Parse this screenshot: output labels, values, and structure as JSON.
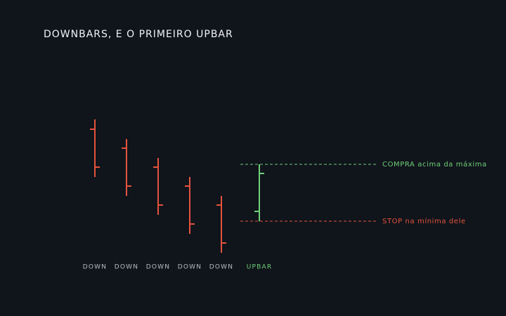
{
  "title": "DOWNBARS, E O PRIMEIRO UPBAR",
  "bar_labels": [
    "DOWN",
    "DOWN",
    "DOWN",
    "DOWN",
    "DOWN",
    "UPBAR"
  ],
  "annotations": {
    "buy": "COMPRA acima da máxima",
    "stop": "STOP na mínima dele"
  }
}
